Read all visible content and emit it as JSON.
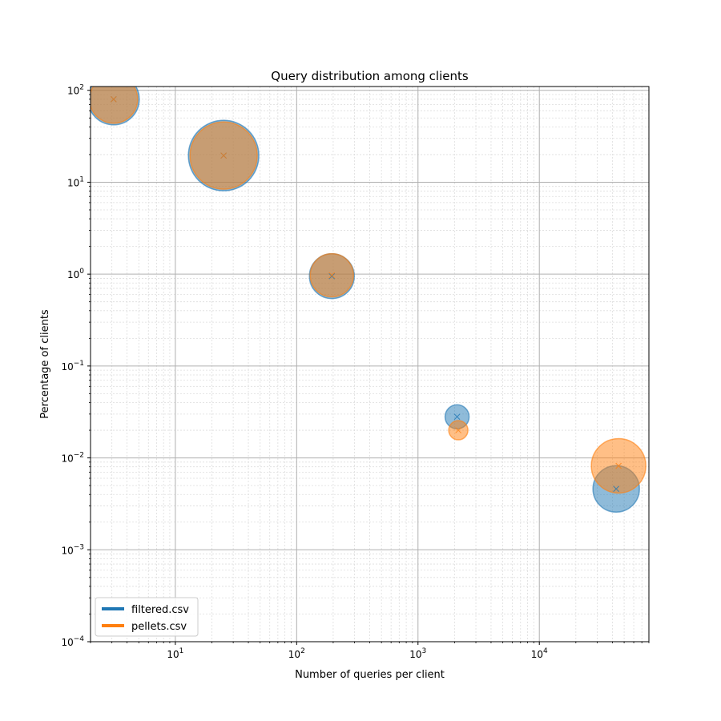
{
  "chart_data": {
    "type": "scatter",
    "title": "Query distribution among clients",
    "xlabel": "Number of queries per client",
    "ylabel": "Percentage of clients",
    "xscale": "log",
    "yscale": "log",
    "xlim": [
      2.0,
      80000
    ],
    "ylim": [
      0.0001,
      110
    ],
    "grid": true,
    "legend_position": "lower-left",
    "x_ticks": [
      {
        "value": 10,
        "base": "10",
        "exp": "1"
      },
      {
        "value": 100,
        "base": "10",
        "exp": "2"
      },
      {
        "value": 1000,
        "base": "10",
        "exp": "3"
      },
      {
        "value": 10000,
        "base": "10",
        "exp": "4"
      }
    ],
    "y_ticks": [
      {
        "value": 0.0001,
        "base": "10",
        "exp": "−4"
      },
      {
        "value": 0.001,
        "base": "10",
        "exp": "−3"
      },
      {
        "value": 0.01,
        "base": "10",
        "exp": "−2"
      },
      {
        "value": 0.1,
        "base": "10",
        "exp": "−1"
      },
      {
        "value": 1,
        "base": "10",
        "exp": "0"
      },
      {
        "value": 10,
        "base": "10",
        "exp": "1"
      },
      {
        "value": 100,
        "base": "10",
        "exp": "2"
      }
    ],
    "series": [
      {
        "name": "filtered.csv",
        "color": "#1f77b4",
        "points": [
          {
            "x": 3.1,
            "y": 80,
            "size": 32
          },
          {
            "x": 25,
            "y": 19.5,
            "size": 44
          },
          {
            "x": 195,
            "y": 0.95,
            "size": 28
          },
          {
            "x": 2100,
            "y": 0.028,
            "size": 15
          },
          {
            "x": 43000,
            "y": 0.0046,
            "size": 29
          }
        ]
      },
      {
        "name": "pellets.csv",
        "color": "#ff7f0e",
        "points": [
          {
            "x": 3.1,
            "y": 80,
            "size": 30
          },
          {
            "x": 25,
            "y": 19.5,
            "size": 42
          },
          {
            "x": 195,
            "y": 0.97,
            "size": 27
          },
          {
            "x": 2150,
            "y": 0.02,
            "size": 12
          },
          {
            "x": 45000,
            "y": 0.0082,
            "size": 34
          }
        ]
      }
    ]
  }
}
